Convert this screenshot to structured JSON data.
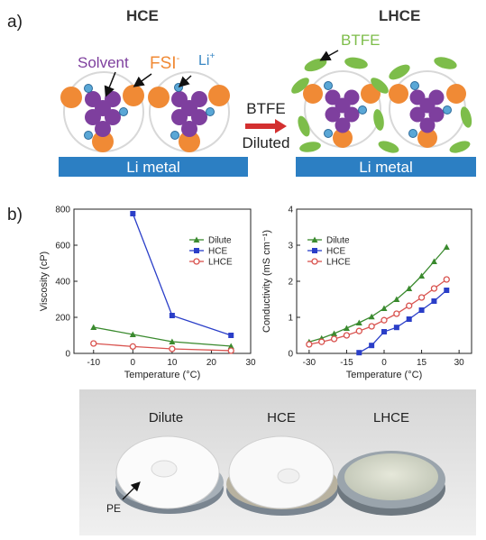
{
  "panel_a": {
    "label": "a)",
    "hce_title": "HCE",
    "lhce_title": "LHCE",
    "solvent_label": "Solvent",
    "fsi_label": "FSI",
    "fsi_charge": "-",
    "li_label": "Li",
    "li_charge": "+",
    "btfe_label": "BTFE",
    "arrow_text_1": "BTFE",
    "arrow_text_2": "Diluted",
    "li_metal_label": "Li metal",
    "colors": {
      "solvent": "#7e3f9e",
      "fsi": "#f08a35",
      "li": "#5aa7d6",
      "btfe": "#7dbd4a",
      "li_metal": "#2c7fc3",
      "arrow": "#d32f2f"
    }
  },
  "panel_b": {
    "label": "b)",
    "photo_labels": [
      "Dilute",
      "HCE",
      "LHCE"
    ],
    "photo_annotation": "PE"
  },
  "chart_data": [
    {
      "type": "line",
      "xlabel": "Temperature (°C)",
      "ylabel": "Viscosity (cP)",
      "xlim": [
        -15,
        30
      ],
      "ylim": [
        0,
        800
      ],
      "xticks": [
        -10,
        0,
        10,
        20,
        30
      ],
      "yticks": [
        0,
        200,
        400,
        600,
        800
      ],
      "legend_position": "top-right",
      "series": [
        {
          "name": "Dilute",
          "color": "#3a8a2e",
          "marker": "triangle",
          "x": [
            -10,
            0,
            10,
            25
          ],
          "y": [
            145,
            105,
            65,
            40
          ]
        },
        {
          "name": "HCE",
          "color": "#2a3ec8",
          "marker": "square",
          "x": [
            0,
            10,
            25
          ],
          "y": [
            775,
            210,
            100
          ]
        },
        {
          "name": "LHCE",
          "color": "#d9534f",
          "marker": "circle",
          "x": [
            -10,
            0,
            10,
            25
          ],
          "y": [
            55,
            38,
            25,
            15
          ]
        }
      ]
    },
    {
      "type": "line",
      "xlabel": "Temperature (°C)",
      "ylabel": "Conductivity (mS cm⁻¹)",
      "xlim": [
        -35,
        35
      ],
      "ylim": [
        0,
        4
      ],
      "xticks": [
        -30,
        -15,
        0,
        15,
        30
      ],
      "yticks": [
        0,
        1,
        2,
        3,
        4
      ],
      "legend_position": "top-left",
      "series": [
        {
          "name": "Dilute",
          "color": "#3a8a2e",
          "marker": "triangle",
          "x": [
            -30,
            -25,
            -20,
            -15,
            -10,
            -5,
            0,
            5,
            10,
            15,
            20,
            25
          ],
          "y": [
            0.32,
            0.42,
            0.55,
            0.7,
            0.85,
            1.02,
            1.25,
            1.5,
            1.8,
            2.15,
            2.55,
            2.95
          ]
        },
        {
          "name": "HCE",
          "color": "#2a3ec8",
          "marker": "square",
          "x": [
            -10,
            -5,
            0,
            5,
            10,
            15,
            20,
            25
          ],
          "y": [
            0.02,
            0.22,
            0.6,
            0.72,
            0.95,
            1.2,
            1.45,
            1.75
          ]
        },
        {
          "name": "LHCE",
          "color": "#d9534f",
          "marker": "circle",
          "x": [
            -30,
            -25,
            -20,
            -15,
            -10,
            -5,
            0,
            5,
            10,
            15,
            20,
            25
          ],
          "y": [
            0.25,
            0.32,
            0.4,
            0.5,
            0.62,
            0.75,
            0.92,
            1.1,
            1.32,
            1.55,
            1.8,
            2.05
          ]
        }
      ]
    }
  ]
}
